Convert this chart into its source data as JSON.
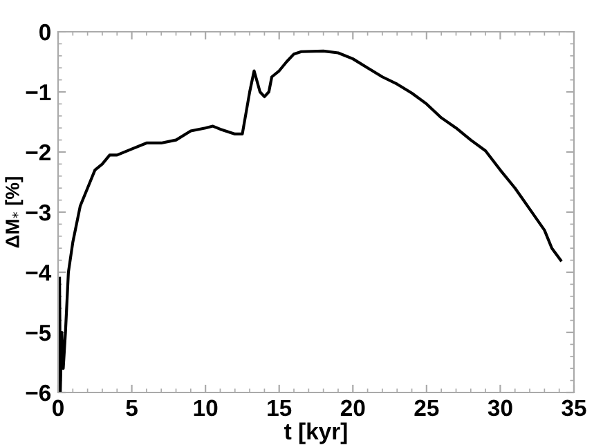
{
  "chart_data": {
    "type": "line",
    "xlabel": "t [kyr]",
    "ylabel": "ΔM$_{*}$ [%]",
    "xlim": [
      0,
      35
    ],
    "ylim": [
      -6,
      0
    ],
    "xticks": [
      0,
      5,
      10,
      15,
      20,
      25,
      30,
      35
    ],
    "yticks": [
      0,
      -1,
      -2,
      -3,
      -4,
      -5,
      -6
    ],
    "grid": false,
    "legend": false,
    "marker": "none",
    "line_style": "solid",
    "series": [
      {
        "color": "#000000",
        "x": [
          0.1,
          0.15,
          0.25,
          0.35,
          0.5,
          0.7,
          1.0,
          1.5,
          2,
          2.5,
          3,
          3.5,
          4,
          5,
          6,
          7,
          8,
          9,
          10,
          10.5,
          11,
          12,
          12.5,
          13,
          13.3,
          13.7,
          14,
          14.3,
          14.5,
          15,
          15.5,
          16,
          16.5,
          18,
          19,
          20,
          21,
          22,
          23,
          24,
          25,
          26,
          27,
          28,
          29,
          30,
          31,
          32,
          33,
          33.5,
          34.1
        ],
        "values": [
          -4.1,
          -6.0,
          -5.0,
          -5.6,
          -5.0,
          -4.0,
          -3.5,
          -2.9,
          -2.6,
          -2.3,
          -2.2,
          -2.05,
          -2.05,
          -1.95,
          -1.85,
          -1.85,
          -1.8,
          -1.65,
          -1.6,
          -1.57,
          -1.62,
          -1.7,
          -1.7,
          -1.0,
          -0.65,
          -1.0,
          -1.08,
          -1.0,
          -0.75,
          -0.65,
          -0.5,
          -0.37,
          -0.33,
          -0.32,
          -0.35,
          -0.45,
          -0.6,
          -0.75,
          -0.87,
          -1.02,
          -1.2,
          -1.43,
          -1.6,
          -1.8,
          -1.98,
          -2.3,
          -2.6,
          -2.95,
          -3.3,
          -3.6,
          -3.8
        ]
      }
    ]
  }
}
